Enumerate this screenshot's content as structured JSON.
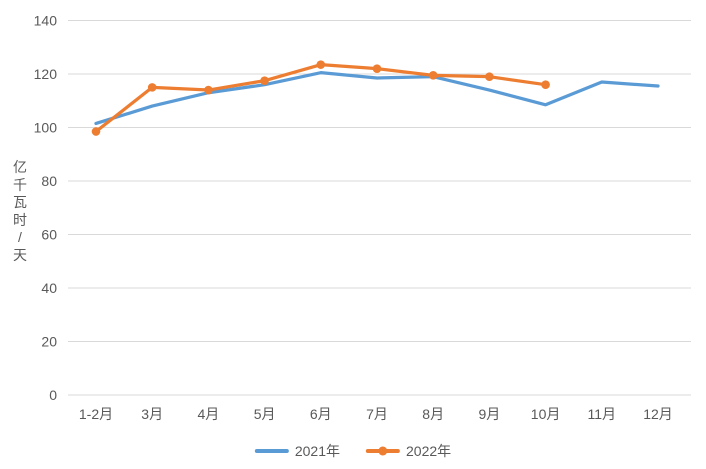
{
  "chart_data": {
    "type": "line",
    "title": "",
    "xlabel": "",
    "ylabel": "亿千瓦时/天",
    "categories": [
      "1-2月",
      "3月",
      "4月",
      "5月",
      "6月",
      "7月",
      "8月",
      "9月",
      "10月",
      "11月",
      "12月"
    ],
    "series": [
      {
        "name": "2021年",
        "color": "#5B9BD5",
        "marker": "none",
        "values": [
          101.5,
          108,
          113,
          116,
          120.5,
          118.5,
          119,
          114,
          108.5,
          117,
          115.5
        ]
      },
      {
        "name": "2022年",
        "color": "#ED7D31",
        "marker": "circle",
        "values": [
          98.5,
          115,
          114,
          117.5,
          123.5,
          122,
          119.5,
          119,
          116,
          null,
          null
        ]
      }
    ],
    "y_axis": {
      "min": 0,
      "max": 140,
      "step": 20,
      "tick_labels": [
        "0",
        "20",
        "40",
        "60",
        "80",
        "100",
        "120",
        "140"
      ]
    },
    "grid": "horizontal-only",
    "legend_position": "bottom-center",
    "colors": {
      "gridline": "#D9D9D9",
      "axis_text": "#595959",
      "background": "#FFFFFF"
    }
  }
}
